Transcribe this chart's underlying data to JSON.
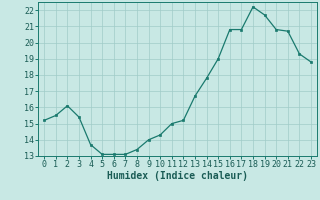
{
  "x": [
    0,
    1,
    2,
    3,
    4,
    5,
    6,
    7,
    8,
    9,
    10,
    11,
    12,
    13,
    14,
    15,
    16,
    17,
    18,
    19,
    20,
    21,
    22,
    23
  ],
  "y": [
    15.2,
    15.5,
    16.1,
    15.4,
    13.7,
    13.1,
    13.1,
    13.1,
    13.4,
    14.0,
    14.3,
    15.0,
    15.2,
    16.7,
    17.8,
    19.0,
    20.8,
    20.8,
    22.2,
    21.7,
    20.8,
    20.7,
    19.3,
    18.8
  ],
  "line_color": "#1a7a6e",
  "marker_color": "#1a7a6e",
  "bg_color": "#c8e8e4",
  "grid_color": "#a0ccc8",
  "xlabel": "Humidex (Indice chaleur)",
  "ylim": [
    13,
    22.5
  ],
  "xlim": [
    -0.5,
    23.5
  ],
  "yticks": [
    13,
    14,
    15,
    16,
    17,
    18,
    19,
    20,
    21,
    22
  ],
  "xticks": [
    0,
    1,
    2,
    3,
    4,
    5,
    6,
    7,
    8,
    9,
    10,
    11,
    12,
    13,
    14,
    15,
    16,
    17,
    18,
    19,
    20,
    21,
    22,
    23
  ],
  "label_fontsize": 7.0,
  "tick_fontsize": 6.0,
  "tick_color": "#1a5c55"
}
